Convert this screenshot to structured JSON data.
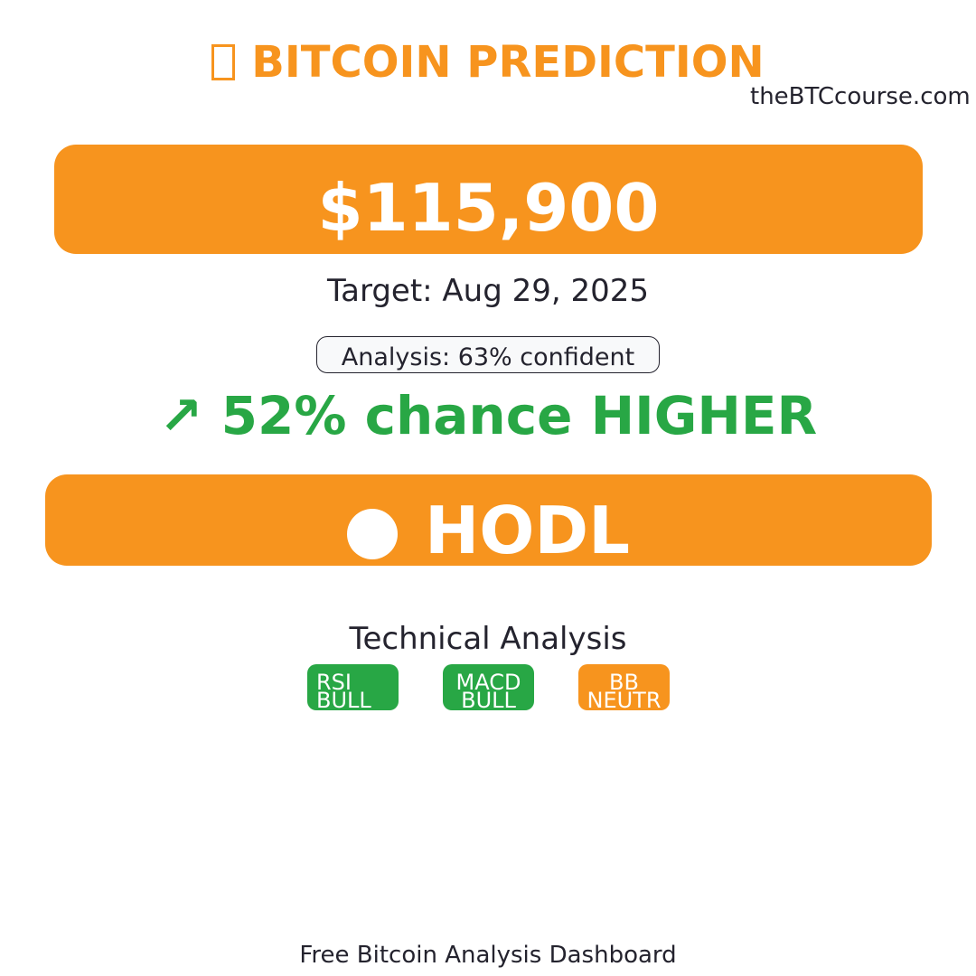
{
  "header": {
    "title": "BITCOIN PREDICTION",
    "title_icon": "bitcoin-icon",
    "site": "theBTCcourse.com"
  },
  "prediction": {
    "price": "$115,900",
    "target": "Target: Aug 29, 2025",
    "confidence": "Analysis: 63% confident",
    "chance": "↗ 52% chance HIGHER"
  },
  "recommendation": {
    "icon": "circle-icon",
    "label": "HODL"
  },
  "technical_analysis": {
    "heading": "Technical Analysis",
    "indicators": [
      {
        "name": "RSI",
        "signal": "BULL"
      },
      {
        "name": "MACD",
        "signal": "BULL"
      },
      {
        "name": "BB",
        "signal": "NEUTR"
      }
    ]
  },
  "footer": {
    "text": "Free Bitcoin Analysis Dashboard"
  },
  "colors": {
    "accent": "#f7941e",
    "bullish": "#28a745",
    "text": "#24232e",
    "background": "#ffffff"
  }
}
